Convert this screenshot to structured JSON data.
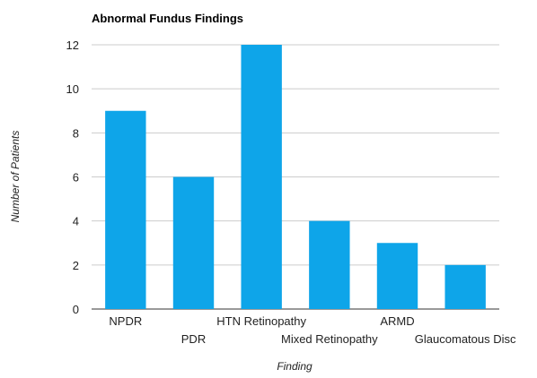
{
  "chart_data": {
    "type": "bar",
    "title": "Abnormal Fundus Findings",
    "xlabel": "Finding",
    "ylabel": "Number of Patients",
    "categories": [
      "NPDR",
      "PDR",
      "HTN Retinopathy",
      "Mixed Retinopathy",
      "ARMD",
      "Glaucomatous Disc"
    ],
    "values": [
      9,
      6,
      12,
      4,
      3,
      2
    ],
    "ylim": [
      0,
      12
    ],
    "yticks": [
      0,
      2,
      4,
      6,
      8,
      10,
      12
    ],
    "grid": true,
    "legend": "none",
    "bar_color": "#0ea5e9"
  }
}
